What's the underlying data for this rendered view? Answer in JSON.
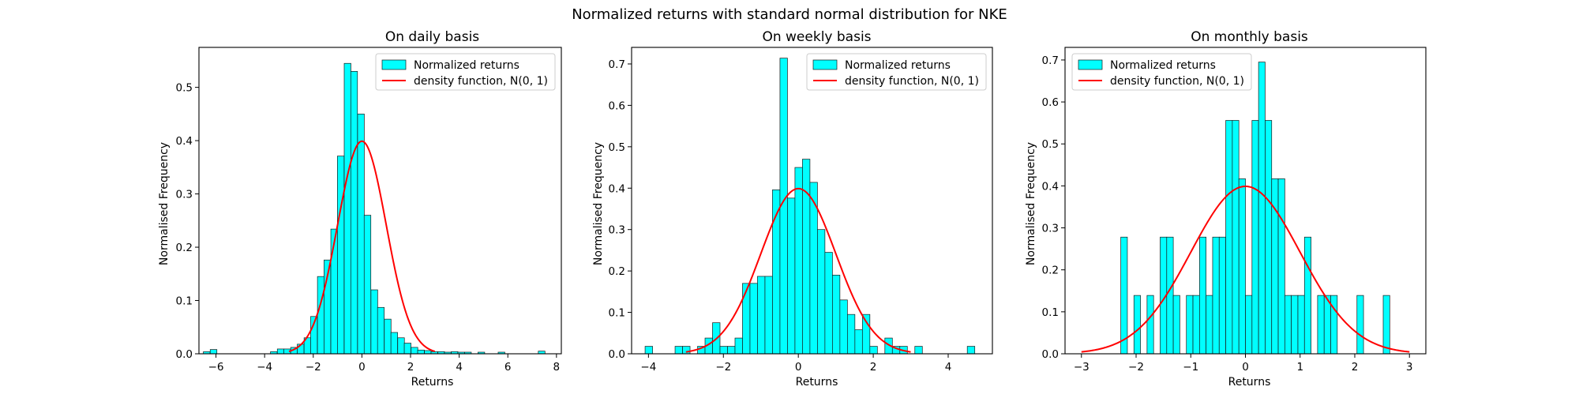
{
  "figure": {
    "title": "Normalized returns with standard normal distribution for NKE"
  },
  "style": {
    "bar_fill": "#00ffff",
    "bar_edge": "#1a1a1a",
    "curve_color": "#ff0000",
    "axis_color": "#000000"
  },
  "chart_data": [
    {
      "type": "bar",
      "title": "On daily basis",
      "xlabel": "Returns",
      "ylabel": "Normalised Frequency",
      "xlim": [
        -6.7,
        8.2
      ],
      "ylim": [
        0,
        0.575
      ],
      "xticks": [
        -6,
        -4,
        -2,
        0,
        2,
        4,
        6,
        8
      ],
      "xtick_labels": [
        "−6",
        "−4",
        "−2",
        "0",
        "2",
        "4",
        "6",
        "8"
      ],
      "yticks": [
        0.0,
        0.1,
        0.2,
        0.3,
        0.4,
        0.5
      ],
      "ytick_labels": [
        "0.0",
        "0.1",
        "0.2",
        "0.3",
        "0.4",
        "0.5"
      ],
      "legend": {
        "position": "upper right",
        "entries": [
          "Normalized returns",
          "density function, N(0, 1)"
        ]
      },
      "curve": {
        "name": "density function, N(0, 1)",
        "x_range": [
          -3,
          3
        ],
        "mean": 0,
        "std": 1
      },
      "series": [
        {
          "name": "Normalized returns",
          "bin_width": 0.275,
          "bins": [
            {
              "x": -6.38,
              "y": 0.004
            },
            {
              "x": -6.1,
              "y": 0.008
            },
            {
              "x": -3.62,
              "y": 0.004
            },
            {
              "x": -3.34,
              "y": 0.009
            },
            {
              "x": -3.07,
              "y": 0.009
            },
            {
              "x": -2.79,
              "y": 0.012
            },
            {
              "x": -2.52,
              "y": 0.018
            },
            {
              "x": -2.24,
              "y": 0.03
            },
            {
              "x": -1.97,
              "y": 0.07
            },
            {
              "x": -1.69,
              "y": 0.145
            },
            {
              "x": -1.42,
              "y": 0.176
            },
            {
              "x": -1.14,
              "y": 0.234
            },
            {
              "x": -0.87,
              "y": 0.371
            },
            {
              "x": -0.59,
              "y": 0.545
            },
            {
              "x": -0.32,
              "y": 0.53
            },
            {
              "x": -0.04,
              "y": 0.45
            },
            {
              "x": 0.23,
              "y": 0.26
            },
            {
              "x": 0.51,
              "y": 0.12
            },
            {
              "x": 0.78,
              "y": 0.087
            },
            {
              "x": 1.06,
              "y": 0.065
            },
            {
              "x": 1.33,
              "y": 0.04
            },
            {
              "x": 1.61,
              "y": 0.03
            },
            {
              "x": 1.88,
              "y": 0.02
            },
            {
              "x": 2.16,
              "y": 0.012
            },
            {
              "x": 2.43,
              "y": 0.007
            },
            {
              "x": 2.71,
              "y": 0.006
            },
            {
              "x": 2.98,
              "y": 0.004
            },
            {
              "x": 3.26,
              "y": 0.004
            },
            {
              "x": 3.53,
              "y": 0.003
            },
            {
              "x": 3.81,
              "y": 0.004
            },
            {
              "x": 4.08,
              "y": 0.003
            },
            {
              "x": 4.36,
              "y": 0.003
            },
            {
              "x": 4.91,
              "y": 0.003
            },
            {
              "x": 5.74,
              "y": 0.003
            },
            {
              "x": 7.39,
              "y": 0.005
            }
          ]
        }
      ]
    },
    {
      "type": "bar",
      "title": "On weekly basis",
      "xlabel": "Returns",
      "ylabel": "Normalised Frequency",
      "xlim": [
        -4.45,
        5.18
      ],
      "ylim": [
        0,
        0.74
      ],
      "xticks": [
        -4,
        -2,
        0,
        2,
        4
      ],
      "xtick_labels": [
        "−4",
        "−2",
        "0",
        "2",
        "4"
      ],
      "yticks": [
        0.0,
        0.1,
        0.2,
        0.3,
        0.4,
        0.5,
        0.6,
        0.7
      ],
      "ytick_labels": [
        "0.0",
        "0.1",
        "0.2",
        "0.3",
        "0.4",
        "0.5",
        "0.6",
        "0.7"
      ],
      "legend": {
        "position": "upper right",
        "entries": [
          "Normalized returns",
          "density function, N(0, 1)"
        ]
      },
      "curve": {
        "name": "density function, N(0, 1)",
        "x_range": [
          -3,
          3
        ],
        "mean": 0,
        "std": 1
      },
      "series": [
        {
          "name": "Normalized returns",
          "bin_width": 0.2,
          "bins": [
            {
              "x": -3.99,
              "y": 0.018
            },
            {
              "x": -3.19,
              "y": 0.018
            },
            {
              "x": -2.99,
              "y": 0.018
            },
            {
              "x": -2.79,
              "y": 0.0
            },
            {
              "x": -2.59,
              "y": 0.018
            },
            {
              "x": -2.39,
              "y": 0.038
            },
            {
              "x": -2.19,
              "y": 0.075
            },
            {
              "x": -1.99,
              "y": 0.018
            },
            {
              "x": -1.79,
              "y": 0.018
            },
            {
              "x": -1.59,
              "y": 0.038
            },
            {
              "x": -1.39,
              "y": 0.17
            },
            {
              "x": -1.19,
              "y": 0.17
            },
            {
              "x": -0.99,
              "y": 0.187
            },
            {
              "x": -0.79,
              "y": 0.187
            },
            {
              "x": -0.59,
              "y": 0.396
            },
            {
              "x": -0.39,
              "y": 0.714
            },
            {
              "x": -0.19,
              "y": 0.376
            },
            {
              "x": 0.01,
              "y": 0.45
            },
            {
              "x": 0.21,
              "y": 0.47
            },
            {
              "x": 0.41,
              "y": 0.414
            },
            {
              "x": 0.61,
              "y": 0.3
            },
            {
              "x": 0.81,
              "y": 0.245
            },
            {
              "x": 1.01,
              "y": 0.19
            },
            {
              "x": 1.21,
              "y": 0.13
            },
            {
              "x": 1.41,
              "y": 0.095
            },
            {
              "x": 1.61,
              "y": 0.058
            },
            {
              "x": 1.81,
              "y": 0.095
            },
            {
              "x": 2.01,
              "y": 0.018
            },
            {
              "x": 2.41,
              "y": 0.038
            },
            {
              "x": 2.61,
              "y": 0.018
            },
            {
              "x": 2.81,
              "y": 0.018
            },
            {
              "x": 3.21,
              "y": 0.018
            },
            {
              "x": 4.61,
              "y": 0.018
            }
          ]
        }
      ]
    },
    {
      "type": "bar",
      "title": "On monthly basis",
      "xlabel": "Returns",
      "ylabel": "Normalised Frequency",
      "xlim": [
        -3.3,
        3.3
      ],
      "ylim": [
        0,
        0.73
      ],
      "xticks": [
        -3,
        -2,
        -1,
        0,
        1,
        2,
        3
      ],
      "xtick_labels": [
        "−3",
        "−2",
        "−1",
        "0",
        "1",
        "2",
        "3"
      ],
      "yticks": [
        0.0,
        0.1,
        0.2,
        0.3,
        0.4,
        0.5,
        0.6,
        0.7
      ],
      "ytick_labels": [
        "0.0",
        "0.1",
        "0.2",
        "0.3",
        "0.4",
        "0.5",
        "0.6",
        "0.7"
      ],
      "legend": {
        "position": "upper left",
        "entries": [
          "Normalized returns",
          "density function, N(0, 1)"
        ]
      },
      "curve": {
        "name": "density function, N(0, 1)",
        "x_range": [
          -3,
          3
        ],
        "mean": 0,
        "std": 1
      },
      "series": [
        {
          "name": "Normalized returns",
          "bin_width": 0.12,
          "bins": [
            {
              "x": -2.22,
              "y": 0.278
            },
            {
              "x": -1.98,
              "y": 0.139
            },
            {
              "x": -1.74,
              "y": 0.139
            },
            {
              "x": -1.5,
              "y": 0.278
            },
            {
              "x": -1.38,
              "y": 0.278
            },
            {
              "x": -1.26,
              "y": 0.139
            },
            {
              "x": -1.02,
              "y": 0.139
            },
            {
              "x": -0.9,
              "y": 0.139
            },
            {
              "x": -0.78,
              "y": 0.278
            },
            {
              "x": -0.66,
              "y": 0.139
            },
            {
              "x": -0.54,
              "y": 0.278
            },
            {
              "x": -0.42,
              "y": 0.278
            },
            {
              "x": -0.3,
              "y": 0.556
            },
            {
              "x": -0.18,
              "y": 0.556
            },
            {
              "x": -0.06,
              "y": 0.417
            },
            {
              "x": 0.06,
              "y": 0.139
            },
            {
              "x": 0.18,
              "y": 0.556
            },
            {
              "x": 0.3,
              "y": 0.695
            },
            {
              "x": 0.42,
              "y": 0.556
            },
            {
              "x": 0.54,
              "y": 0.417
            },
            {
              "x": 0.66,
              "y": 0.417
            },
            {
              "x": 0.78,
              "y": 0.139
            },
            {
              "x": 0.9,
              "y": 0.139
            },
            {
              "x": 1.02,
              "y": 0.139
            },
            {
              "x": 1.14,
              "y": 0.278
            },
            {
              "x": 1.38,
              "y": 0.139
            },
            {
              "x": 1.5,
              "y": 0.139
            },
            {
              "x": 1.62,
              "y": 0.139
            },
            {
              "x": 2.1,
              "y": 0.139
            },
            {
              "x": 2.58,
              "y": 0.139
            }
          ]
        }
      ]
    }
  ]
}
